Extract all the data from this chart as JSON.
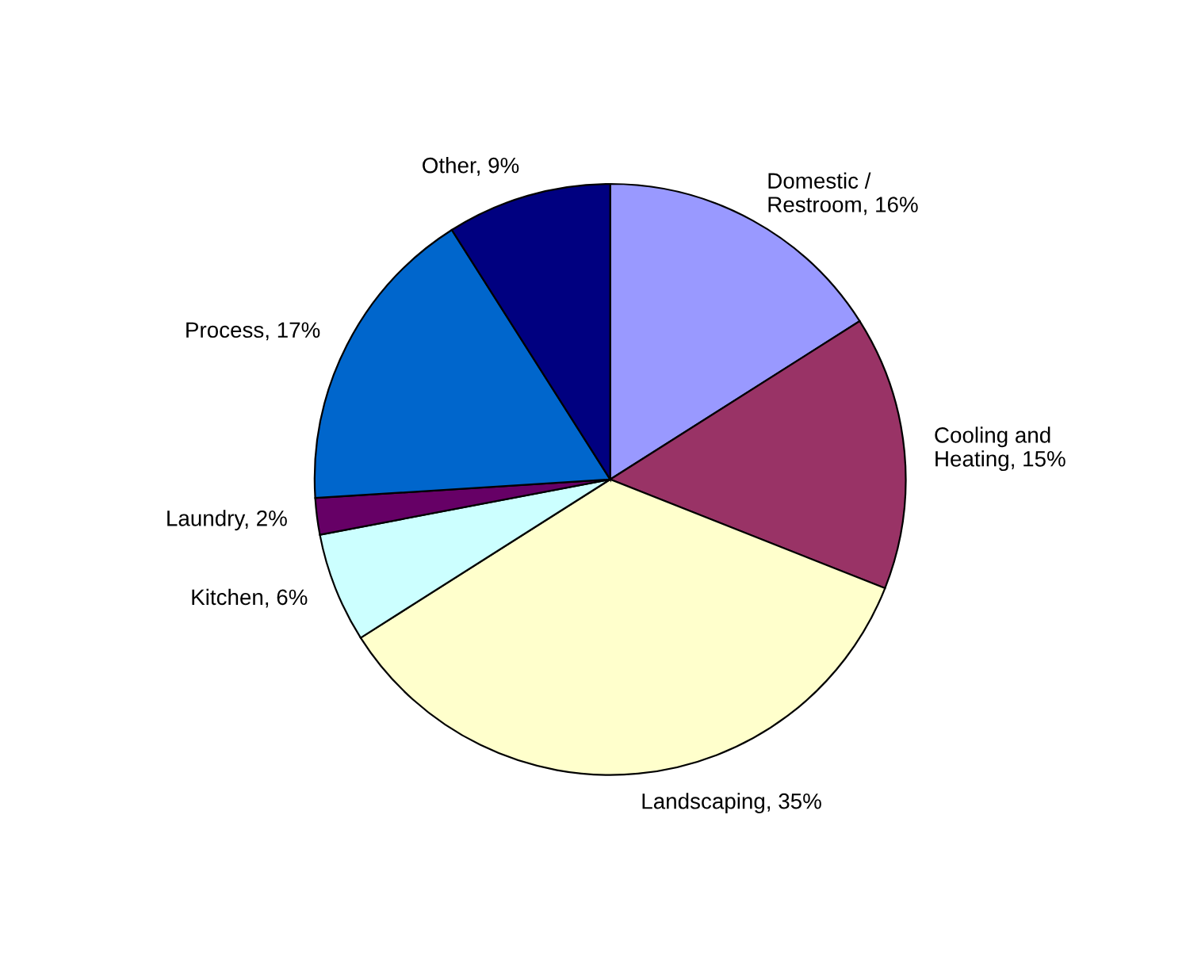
{
  "chart_data": {
    "type": "pie",
    "categories": [
      "Domestic / Restroom, 16%",
      "Cooling and Heating, 15%",
      "Landscaping, 35%",
      "Kitchen, 6%",
      "Laundry, 2%",
      "Process, 17%",
      "Other, 9%"
    ],
    "values": [
      16,
      15,
      35,
      6,
      2,
      17,
      9
    ],
    "colors": [
      "#9999ff",
      "#993366",
      "#ffffcc",
      "#ccffff",
      "#660066",
      "#0066cc",
      "#000080"
    ],
    "legend": false
  }
}
